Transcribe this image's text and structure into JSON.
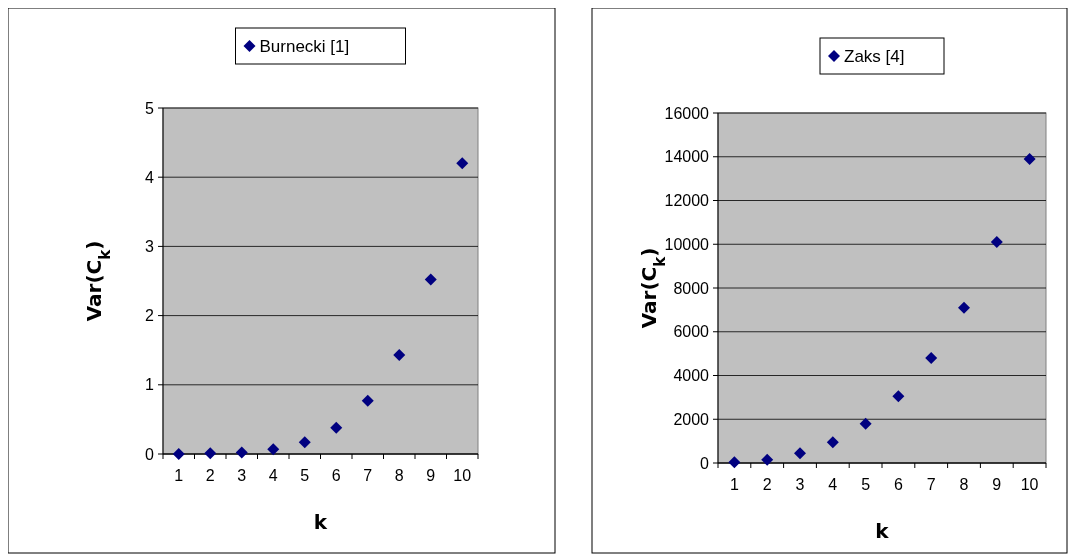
{
  "chart_data": [
    {
      "type": "scatter",
      "xlabel": "k",
      "ylabel": "Var(C$_{k}$)",
      "categories": [
        "1",
        "2",
        "3",
        "4",
        "5",
        "6",
        "7",
        "8",
        "9",
        "10"
      ],
      "series": [
        {
          "name": "Burnecki [1]",
          "color": "#000080",
          "values": [
            0,
            0.01,
            0.02,
            0.07,
            0.17,
            0.38,
            0.77,
            1.43,
            2.52,
            4.2
          ]
        }
      ],
      "ylim": [
        0,
        5
      ],
      "yticks": [
        0,
        1,
        2,
        3,
        4,
        5
      ],
      "grid": "y",
      "legend": "top",
      "marker": "diamond"
    },
    {
      "type": "scatter",
      "xlabel": "k",
      "ylabel": "Var(C$_{k}$)",
      "categories": [
        "1",
        "2",
        "3",
        "4",
        "5",
        "6",
        "7",
        "8",
        "9",
        "10"
      ],
      "series": [
        {
          "name": "Zaks [4]",
          "color": "#000080",
          "values": [
            30,
            150,
            450,
            950,
            1800,
            3050,
            4800,
            7100,
            10100,
            13900
          ]
        }
      ],
      "ylim": [
        0,
        16000
      ],
      "yticks": [
        0,
        2000,
        4000,
        6000,
        8000,
        10000,
        12000,
        14000,
        16000
      ],
      "grid": "y",
      "legend": "top",
      "marker": "diamond"
    }
  ]
}
